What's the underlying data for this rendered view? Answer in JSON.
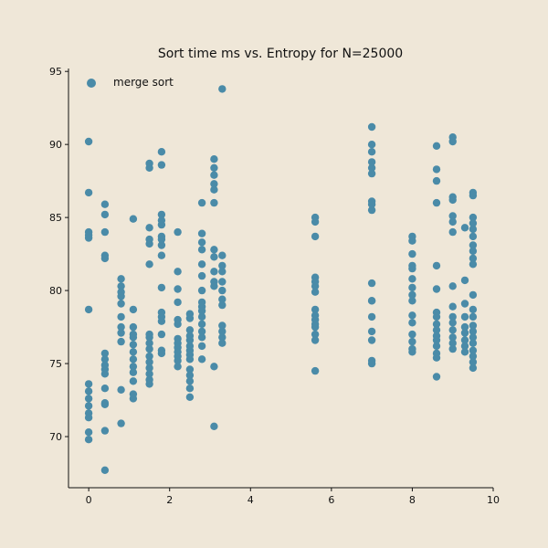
{
  "chart_data": {
    "type": "scatter",
    "title": "Sort time ms vs. Entropy for N=25000",
    "xlabel": "",
    "ylabel": "",
    "xlim": [
      -0.5,
      10
    ],
    "ylim": [
      66.5,
      95.2
    ],
    "xticks": [
      0,
      2,
      4,
      6,
      8,
      10
    ],
    "yticks": [
      70,
      75,
      80,
      85,
      90,
      95
    ],
    "grid": false,
    "legend_position": "top-left",
    "colors": {
      "background": "#efe7d8",
      "marker": "#4a8ba8",
      "axis": "#111111"
    },
    "series": [
      {
        "name": "merge sort",
        "points": [
          [
            0.0,
            90.2
          ],
          [
            0.0,
            86.7
          ],
          [
            0.0,
            84.0
          ],
          [
            0.0,
            83.8
          ],
          [
            0.0,
            83.6
          ],
          [
            0.0,
            78.7
          ],
          [
            0.0,
            73.6
          ],
          [
            0.0,
            73.1
          ],
          [
            0.0,
            72.6
          ],
          [
            0.0,
            72.1
          ],
          [
            0.0,
            71.6
          ],
          [
            0.0,
            71.3
          ],
          [
            0.0,
            70.3
          ],
          [
            0.0,
            69.8
          ],
          [
            0.4,
            85.9
          ],
          [
            0.4,
            85.2
          ],
          [
            0.4,
            84.0
          ],
          [
            0.4,
            82.4
          ],
          [
            0.4,
            82.2
          ],
          [
            0.4,
            75.7
          ],
          [
            0.4,
            75.3
          ],
          [
            0.4,
            74.9
          ],
          [
            0.4,
            74.6
          ],
          [
            0.4,
            74.3
          ],
          [
            0.4,
            73.3
          ],
          [
            0.4,
            72.3
          ],
          [
            0.4,
            72.2
          ],
          [
            0.4,
            70.4
          ],
          [
            0.4,
            67.7
          ],
          [
            0.8,
            80.8
          ],
          [
            0.8,
            80.3
          ],
          [
            0.8,
            79.9
          ],
          [
            0.8,
            79.6
          ],
          [
            0.8,
            79.1
          ],
          [
            0.8,
            78.2
          ],
          [
            0.8,
            77.5
          ],
          [
            0.8,
            77.1
          ],
          [
            0.8,
            76.5
          ],
          [
            0.8,
            73.2
          ],
          [
            0.8,
            70.9
          ],
          [
            1.1,
            84.9
          ],
          [
            1.1,
            78.7
          ],
          [
            1.1,
            77.5
          ],
          [
            1.1,
            77.0
          ],
          [
            1.1,
            76.8
          ],
          [
            1.1,
            76.3
          ],
          [
            1.1,
            75.8
          ],
          [
            1.1,
            75.3
          ],
          [
            1.1,
            74.8
          ],
          [
            1.1,
            74.4
          ],
          [
            1.1,
            73.8
          ],
          [
            1.1,
            72.9
          ],
          [
            1.1,
            72.6
          ],
          [
            1.5,
            88.7
          ],
          [
            1.5,
            88.4
          ],
          [
            1.5,
            84.3
          ],
          [
            1.5,
            83.5
          ],
          [
            1.5,
            83.2
          ],
          [
            1.5,
            81.8
          ],
          [
            1.5,
            77.0
          ],
          [
            1.5,
            76.8
          ],
          [
            1.5,
            76.4
          ],
          [
            1.5,
            76.0
          ],
          [
            1.5,
            75.5
          ],
          [
            1.5,
            75.1
          ],
          [
            1.5,
            74.7
          ],
          [
            1.5,
            74.3
          ],
          [
            1.5,
            73.9
          ],
          [
            1.5,
            73.6
          ],
          [
            1.8,
            89.5
          ],
          [
            1.8,
            88.6
          ],
          [
            1.8,
            85.2
          ],
          [
            1.8,
            84.8
          ],
          [
            1.8,
            84.5
          ],
          [
            1.8,
            83.7
          ],
          [
            1.8,
            83.5
          ],
          [
            1.8,
            83.1
          ],
          [
            1.8,
            82.4
          ],
          [
            1.8,
            80.2
          ],
          [
            1.8,
            78.5
          ],
          [
            1.8,
            78.2
          ],
          [
            1.8,
            77.9
          ],
          [
            1.8,
            77.0
          ],
          [
            1.8,
            75.9
          ],
          [
            1.8,
            75.7
          ],
          [
            2.2,
            84.0
          ],
          [
            2.2,
            81.3
          ],
          [
            2.2,
            80.1
          ],
          [
            2.2,
            79.2
          ],
          [
            2.2,
            78.0
          ],
          [
            2.2,
            77.7
          ],
          [
            2.2,
            76.7
          ],
          [
            2.2,
            76.4
          ],
          [
            2.2,
            76.1
          ],
          [
            2.2,
            75.8
          ],
          [
            2.2,
            75.5
          ],
          [
            2.2,
            75.2
          ],
          [
            2.2,
            74.8
          ],
          [
            2.5,
            78.4
          ],
          [
            2.5,
            78.1
          ],
          [
            2.5,
            77.3
          ],
          [
            2.5,
            76.9
          ],
          [
            2.5,
            76.6
          ],
          [
            2.5,
            76.2
          ],
          [
            2.5,
            75.9
          ],
          [
            2.5,
            75.6
          ],
          [
            2.5,
            75.3
          ],
          [
            2.5,
            74.6
          ],
          [
            2.5,
            74.2
          ],
          [
            2.5,
            73.8
          ],
          [
            2.5,
            73.3
          ],
          [
            2.5,
            72.7
          ],
          [
            2.8,
            86.0
          ],
          [
            2.8,
            83.9
          ],
          [
            2.8,
            83.3
          ],
          [
            2.8,
            82.8
          ],
          [
            2.8,
            81.8
          ],
          [
            2.8,
            81.0
          ],
          [
            2.8,
            80.0
          ],
          [
            2.8,
            79.2
          ],
          [
            2.8,
            78.9
          ],
          [
            2.8,
            78.6
          ],
          [
            2.8,
            78.2
          ],
          [
            2.8,
            77.7
          ],
          [
            2.8,
            77.2
          ],
          [
            2.8,
            76.8
          ],
          [
            2.8,
            76.2
          ],
          [
            2.8,
            75.3
          ],
          [
            3.1,
            89.0
          ],
          [
            3.1,
            88.4
          ],
          [
            3.1,
            87.9
          ],
          [
            3.1,
            87.3
          ],
          [
            3.1,
            86.9
          ],
          [
            3.1,
            86.0
          ],
          [
            3.1,
            82.8
          ],
          [
            3.1,
            82.3
          ],
          [
            3.1,
            81.3
          ],
          [
            3.1,
            80.6
          ],
          [
            3.1,
            80.3
          ],
          [
            3.1,
            74.8
          ],
          [
            3.1,
            70.7
          ],
          [
            3.3,
            93.8
          ],
          [
            3.3,
            82.4
          ],
          [
            3.3,
            81.7
          ],
          [
            3.3,
            81.3
          ],
          [
            3.3,
            80.6
          ],
          [
            3.3,
            80.0
          ],
          [
            3.3,
            79.4
          ],
          [
            3.3,
            79.0
          ],
          [
            3.3,
            77.6
          ],
          [
            3.3,
            77.2
          ],
          [
            3.3,
            76.8
          ],
          [
            3.3,
            76.4
          ],
          [
            5.6,
            85.0
          ],
          [
            5.6,
            84.7
          ],
          [
            5.6,
            83.7
          ],
          [
            5.6,
            80.9
          ],
          [
            5.6,
            80.6
          ],
          [
            5.6,
            80.3
          ],
          [
            5.6,
            79.9
          ],
          [
            5.6,
            78.7
          ],
          [
            5.6,
            78.3
          ],
          [
            5.6,
            78.0
          ],
          [
            5.6,
            77.7
          ],
          [
            5.6,
            77.5
          ],
          [
            5.6,
            77.0
          ],
          [
            5.6,
            76.6
          ],
          [
            5.6,
            74.5
          ],
          [
            7.0,
            91.2
          ],
          [
            7.0,
            90.0
          ],
          [
            7.0,
            89.5
          ],
          [
            7.0,
            88.8
          ],
          [
            7.0,
            88.4
          ],
          [
            7.0,
            88.0
          ],
          [
            7.0,
            86.1
          ],
          [
            7.0,
            85.9
          ],
          [
            7.0,
            85.5
          ],
          [
            7.0,
            80.5
          ],
          [
            7.0,
            79.3
          ],
          [
            7.0,
            79.3
          ],
          [
            7.0,
            78.2
          ],
          [
            7.0,
            77.2
          ],
          [
            7.0,
            76.6
          ],
          [
            7.0,
            75.2
          ],
          [
            7.0,
            75.0
          ],
          [
            8.0,
            83.7
          ],
          [
            8.0,
            83.4
          ],
          [
            8.0,
            82.5
          ],
          [
            8.0,
            81.7
          ],
          [
            8.0,
            81.5
          ],
          [
            8.0,
            80.8
          ],
          [
            8.0,
            80.2
          ],
          [
            8.0,
            79.7
          ],
          [
            8.0,
            79.3
          ],
          [
            8.0,
            78.3
          ],
          [
            8.0,
            77.8
          ],
          [
            8.0,
            77.0
          ],
          [
            8.0,
            76.5
          ],
          [
            8.0,
            76.0
          ],
          [
            8.0,
            75.8
          ],
          [
            8.6,
            89.9
          ],
          [
            8.6,
            88.3
          ],
          [
            8.6,
            87.5
          ],
          [
            8.6,
            86.0
          ],
          [
            8.6,
            81.7
          ],
          [
            8.6,
            80.1
          ],
          [
            8.6,
            78.5
          ],
          [
            8.6,
            78.2
          ],
          [
            8.6,
            77.7
          ],
          [
            8.6,
            77.3
          ],
          [
            8.6,
            76.9
          ],
          [
            8.6,
            76.6
          ],
          [
            8.6,
            76.2
          ],
          [
            8.6,
            75.7
          ],
          [
            8.6,
            75.4
          ],
          [
            8.6,
            74.1
          ],
          [
            9.0,
            90.5
          ],
          [
            9.0,
            90.2
          ],
          [
            9.0,
            86.4
          ],
          [
            9.0,
            86.2
          ],
          [
            9.0,
            85.1
          ],
          [
            9.0,
            84.7
          ],
          [
            9.0,
            84.0
          ],
          [
            9.0,
            80.3
          ],
          [
            9.0,
            78.9
          ],
          [
            9.0,
            78.2
          ],
          [
            9.0,
            77.8
          ],
          [
            9.0,
            77.3
          ],
          [
            9.0,
            76.8
          ],
          [
            9.0,
            76.4
          ],
          [
            9.0,
            76.0
          ],
          [
            9.3,
            84.3
          ],
          [
            9.3,
            80.7
          ],
          [
            9.3,
            79.1
          ],
          [
            9.3,
            78.2
          ],
          [
            9.3,
            77.5
          ],
          [
            9.3,
            77.1
          ],
          [
            9.3,
            76.6
          ],
          [
            9.3,
            76.2
          ],
          [
            9.3,
            75.8
          ],
          [
            9.5,
            86.7
          ],
          [
            9.5,
            86.5
          ],
          [
            9.5,
            85.0
          ],
          [
            9.5,
            84.6
          ],
          [
            9.5,
            84.2
          ],
          [
            9.5,
            83.7
          ],
          [
            9.5,
            83.1
          ],
          [
            9.5,
            82.7
          ],
          [
            9.5,
            82.2
          ],
          [
            9.5,
            81.8
          ],
          [
            9.5,
            79.7
          ],
          [
            9.5,
            78.7
          ],
          [
            9.5,
            78.2
          ],
          [
            9.5,
            77.6
          ],
          [
            9.5,
            77.2
          ],
          [
            9.5,
            76.8
          ],
          [
            9.5,
            76.4
          ],
          [
            9.5,
            75.9
          ],
          [
            9.5,
            75.5
          ],
          [
            9.5,
            75.1
          ],
          [
            9.5,
            74.7
          ]
        ]
      }
    ]
  }
}
